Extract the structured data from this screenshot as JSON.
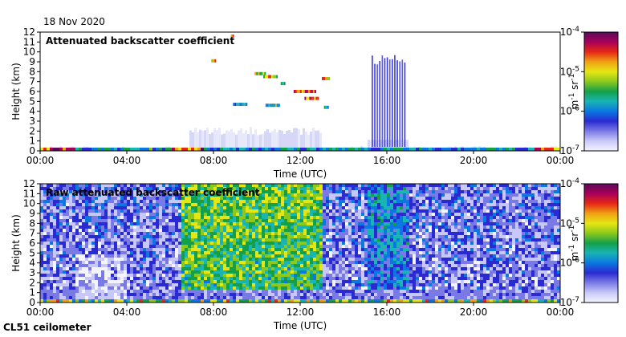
{
  "header": {
    "date": "18 Nov 2020"
  },
  "footer": {
    "instrument": "CL51 ceilometer"
  },
  "chart_data": [
    {
      "type": "heatmap",
      "title": "Attenuated backscatter coefficient",
      "xlabel": "Time (UTC)",
      "ylabel": "Height (km)",
      "x_ticks": [
        "00:00",
        "04:00",
        "08:00",
        "12:00",
        "16:00",
        "20:00",
        "00:00"
      ],
      "y_ticks": [
        "0",
        "1",
        "2",
        "3",
        "4",
        "5",
        "6",
        "7",
        "8",
        "9",
        "10",
        "11",
        "12"
      ],
      "xlim_hours": [
        0,
        24
      ],
      "ylim_km": [
        0,
        12
      ],
      "colorbar": {
        "scale": "log",
        "range": [
          1e-07,
          0.0001
        ],
        "tick_labels": [
          {
            "base": "10",
            "exp": "-4"
          },
          {
            "base": "10",
            "exp": "-5"
          },
          {
            "base": "10",
            "exp": "-6"
          },
          {
            "base": "10",
            "exp": "-7"
          }
        ],
        "unit": {
          "m": "m",
          "m_exp": "-1",
          "sr": " sr",
          "sr_exp": "-1"
        },
        "colors": [
          "#f4f4ff",
          "#c8c8f8",
          "#7a7ae6",
          "#2a2ad2",
          "#0a78e0",
          "#19b4b4",
          "#14a04a",
          "#8cc81e",
          "#e6e614",
          "#f0a014",
          "#e62814",
          "#a8005a",
          "#5a0a5a"
        ]
      },
      "features": {
        "precip_streaks": {
          "time_hours": [
            15.3,
            16.8
          ],
          "height_km": [
            0.4,
            9.7
          ],
          "count": 14
        },
        "cloud_segments": [
          {
            "t_hours": [
              7.9,
              8.1
            ],
            "h_km": 9.1,
            "level": 0.85
          },
          {
            "t_hours": [
              8.8,
              8.9
            ],
            "h_km": 11.6,
            "level": 0.9
          },
          {
            "t_hours": [
              8.9,
              9.5
            ],
            "h_km": 4.7,
            "level": 0.55
          },
          {
            "t_hours": [
              9.9,
              10.4
            ],
            "h_km": 7.8,
            "level": 0.75
          },
          {
            "t_hours": [
              10.3,
              10.9
            ],
            "h_km": 7.5,
            "level": 0.8
          },
          {
            "t_hours": [
              10.4,
              11.0
            ],
            "h_km": 4.6,
            "level": 0.6
          },
          {
            "t_hours": [
              11.1,
              11.3
            ],
            "h_km": 6.8,
            "level": 0.7
          },
          {
            "t_hours": [
              11.7,
              12.7
            ],
            "h_km": 6.0,
            "level": 0.95
          },
          {
            "t_hours": [
              12.2,
              12.8
            ],
            "h_km": 5.3,
            "level": 0.9
          },
          {
            "t_hours": [
              13.0,
              13.3
            ],
            "h_km": 7.3,
            "level": 0.8
          },
          {
            "t_hours": [
              13.1,
              13.3
            ],
            "h_km": 4.4,
            "level": 0.6
          }
        ],
        "boundary_layer_km": 1.6
      }
    },
    {
      "type": "heatmap",
      "title": "Raw attenuated backscatter coefficient",
      "xlabel": "Time (UTC)",
      "ylabel": "Height (km)",
      "x_ticks": [
        "00:00",
        "04:00",
        "08:00",
        "12:00",
        "16:00",
        "20:00",
        "00:00"
      ],
      "y_ticks": [
        "0",
        "1",
        "2",
        "3",
        "4",
        "5",
        "6",
        "7",
        "8",
        "9",
        "10",
        "11",
        "12"
      ],
      "xlim_hours": [
        0,
        24
      ],
      "ylim_km": [
        0,
        12
      ],
      "colorbar": {
        "scale": "log",
        "range": [
          1e-07,
          0.0001
        ],
        "tick_labels": [
          {
            "base": "10",
            "exp": "-4"
          },
          {
            "base": "10",
            "exp": "-5"
          },
          {
            "base": "10",
            "exp": "-6"
          },
          {
            "base": "10",
            "exp": "-7"
          }
        ],
        "unit": {
          "m": "m",
          "m_exp": "-1",
          "sr": " sr",
          "sr_exp": "-1"
        },
        "colors": [
          "#f4f4ff",
          "#c8c8f8",
          "#7a7ae6",
          "#2a2ad2",
          "#0a78e0",
          "#19b4b4",
          "#14a04a",
          "#8cc81e",
          "#e6e614",
          "#f0a014",
          "#e62814",
          "#a8005a",
          "#5a0a5a"
        ]
      },
      "features": {
        "noisy_background": true,
        "high_noise_period_hours": [
          6.5,
          13.0
        ]
      }
    }
  ]
}
